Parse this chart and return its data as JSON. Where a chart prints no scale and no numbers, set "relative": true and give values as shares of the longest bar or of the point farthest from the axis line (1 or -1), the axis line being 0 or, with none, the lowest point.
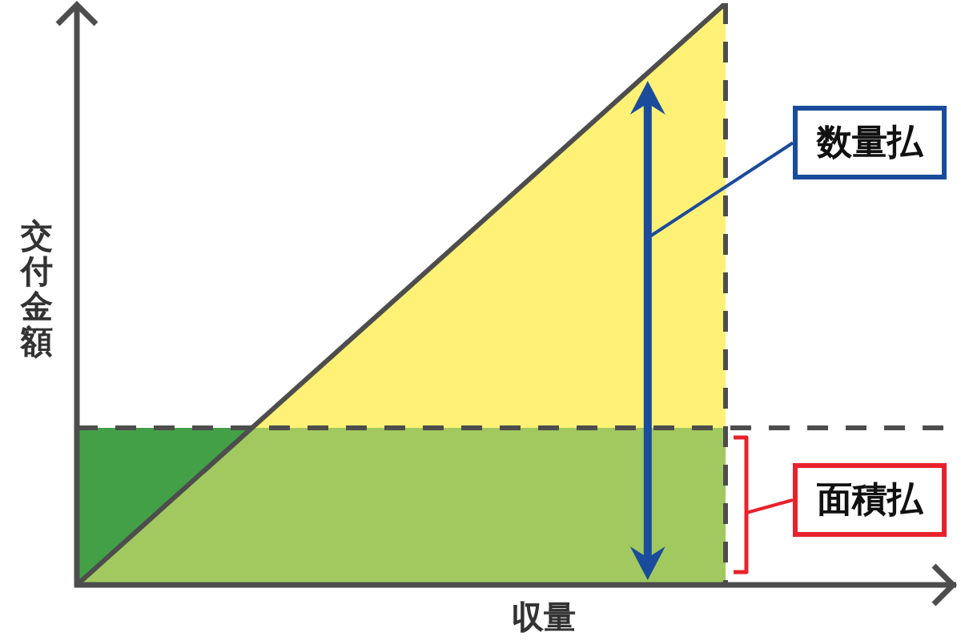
{
  "chart_data": {
    "type": "area",
    "relative": true,
    "xlabel": "収量",
    "ylabel": "交付金額",
    "categories": [
      null,
      null,
      null
    ],
    "series": [
      {
        "name": "数量払",
        "color": "#fff176",
        "values": [
          0,
          0.5,
          1
        ]
      },
      {
        "name": "面積払",
        "color": "#43a047",
        "line_style": "dashed",
        "values": [
          0.27,
          0.27,
          0.27
        ]
      }
    ],
    "ref_lines": [
      {
        "axis": "y",
        "value": 0.27,
        "color": "#4d4d4d",
        "line_style": "dashed"
      }
    ]
  }
}
